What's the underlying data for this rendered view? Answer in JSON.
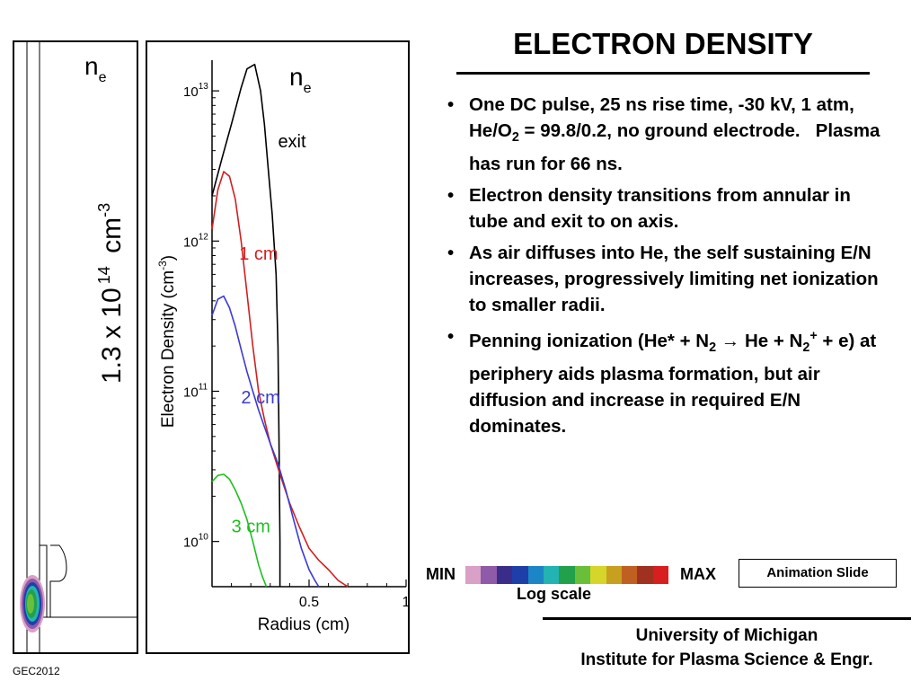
{
  "slide": {
    "title": "ELECTRON DENSITY",
    "slide_tag": "GEC2012",
    "animation_label": "Animation Slide",
    "footer": {
      "line1": "University of Michigan",
      "line2": "Institute for Plasma Science & Engr."
    }
  },
  "bullets": [
    {
      "text_html": "One DC pulse, 25 ns rise time, -30 kV, 1 atm, He/O<sub style=\"font-size:70%\">2</sub> = 99.8/0.2, no ground electrode.&nbsp;&nbsp; Plasma has run for 66 ns."
    },
    {
      "text_html": "Electron density transitions from annular in tube and exit to on axis."
    },
    {
      "text_html": "As air diffuses into He, the self sustaining E/N increases, progressively limiting net ionization to smaller radii."
    },
    {
      "text_html": "Penning ionization (He* + N<sub style=\"font-size:70%\">2</sub> &#8594; He + N<sub style=\"font-size:70%\">2</sub><sup style=\"font-size:70%\">+</sup> + e) at periphery aids plasma formation, but air diffusion and increase in required E/N dominates."
    }
  ],
  "left_image": {
    "label": "n",
    "label_sub": "e",
    "scale_prefix": "1.3 x 10",
    "scale_exp": "14",
    "scale_unit": "cm",
    "scale_unit_exp": "-3"
  },
  "color_scale": {
    "min_label": "MIN",
    "max_label": "MAX",
    "caption": "Log scale",
    "colors": [
      "#d9a0c8",
      "#8f5aa8",
      "#3a2d8a",
      "#1f3fa8",
      "#1a86c6",
      "#23b3b3",
      "#22a04a",
      "#6abf3a",
      "#d6d62a",
      "#c8a020",
      "#c06020",
      "#a03020",
      "#d81f1f"
    ]
  },
  "chart_data": {
    "type": "line",
    "title": "n",
    "title_sub": "e",
    "xlabel": "Radius (cm)",
    "ylabel": "Electron Density (cm",
    "ylabel_exp": "-3",
    "ylabel_close": ")",
    "xlim": [
      0,
      1.0
    ],
    "ylim": [
      5000000000.0,
      16000000000000.0
    ],
    "yscale": "log",
    "x_ticks": [
      {
        "value": 0.5,
        "label": "0.5"
      },
      {
        "value": 1.0,
        "label": "1"
      }
    ],
    "y_ticks": [
      {
        "value": 10000000000.0,
        "base": "10",
        "exp": "10"
      },
      {
        "value": 100000000000.0,
        "base": "10",
        "exp": "11"
      },
      {
        "value": 1000000000000.0,
        "base": "10",
        "exp": "12"
      },
      {
        "value": 10000000000000.0,
        "base": "10",
        "exp": "13"
      }
    ],
    "series": [
      {
        "name": "exit",
        "color": "#000000",
        "x": [
          0.0,
          0.05,
          0.1,
          0.15,
          0.18,
          0.22,
          0.25,
          0.27,
          0.29,
          0.31,
          0.33,
          0.34,
          0.345,
          0.35,
          0.35
        ],
        "y": [
          2000000000000.0,
          3500000000000.0,
          6000000000000.0,
          10500000000000.0,
          14000000000000.0,
          15000000000000.0,
          10000000000000.0,
          6000000000000.0,
          3000000000000.0,
          1500000000000.0,
          600000000000.0,
          200000000000.0,
          50000000000.0,
          10000000000.0,
          5000000000.0
        ]
      },
      {
        "name": "1 cm",
        "color": "#d11f1f",
        "x": [
          0.0,
          0.03,
          0.06,
          0.09,
          0.12,
          0.15,
          0.18,
          0.21,
          0.24,
          0.27,
          0.3,
          0.35,
          0.4,
          0.45,
          0.5,
          0.55,
          0.6,
          0.65,
          0.7
        ],
        "y": [
          1200000000000.0,
          2200000000000.0,
          2900000000000.0,
          2700000000000.0,
          1900000000000.0,
          1000000000000.0,
          450000000000.0,
          200000000000.0,
          100000000000.0,
          65000000000.0,
          45000000000.0,
          28000000000.0,
          18000000000.0,
          12500000000.0,
          9000000000.0,
          7500000000.0,
          6500000000.0,
          5500000000.0,
          5000000000.0
        ]
      },
      {
        "name": "2 cm",
        "color": "#3a3ad6",
        "x": [
          0.0,
          0.03,
          0.06,
          0.09,
          0.12,
          0.15,
          0.18,
          0.21,
          0.24,
          0.27,
          0.3,
          0.34,
          0.38,
          0.42,
          0.46,
          0.5,
          0.53,
          0.55
        ],
        "y": [
          320000000000.0,
          410000000000.0,
          430000000000.0,
          360000000000.0,
          270000000000.0,
          190000000000.0,
          135000000000.0,
          100000000000.0,
          75000000000.0,
          58000000000.0,
          45000000000.0,
          33000000000.0,
          22000000000.0,
          14000000000.0,
          9000000000.0,
          6500000000.0,
          5500000000.0,
          5000000000.0
        ]
      },
      {
        "name": "3 cm",
        "color": "#1fbf1f",
        "x": [
          0.0,
          0.03,
          0.06,
          0.09,
          0.12,
          0.15,
          0.18,
          0.21,
          0.24,
          0.26,
          0.28
        ],
        "y": [
          25000000000.0,
          27500000000.0,
          28000000000.0,
          26000000000.0,
          22000000000.0,
          18000000000.0,
          14000000000.0,
          10000000000.0,
          7000000000.0,
          5800000000.0,
          5000000000.0
        ]
      }
    ]
  }
}
